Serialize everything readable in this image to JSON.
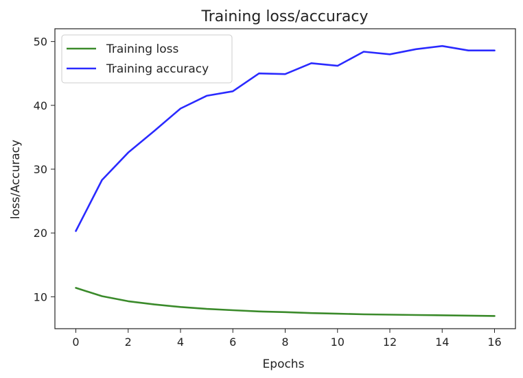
{
  "chart_data": {
    "type": "line",
    "title": "Training loss/accuracy",
    "xlabel": "Epochs",
    "ylabel": "loss/Accuracy",
    "xlim": [
      -0.8,
      16.8
    ],
    "ylim": [
      5,
      52
    ],
    "x_ticks": [
      0,
      2,
      4,
      6,
      8,
      10,
      12,
      14,
      16
    ],
    "y_ticks": [
      10,
      20,
      30,
      40,
      50
    ],
    "grid": false,
    "legend": "top-left",
    "x": [
      0,
      1,
      2,
      3,
      4,
      5,
      6,
      7,
      8,
      9,
      10,
      11,
      12,
      13,
      14,
      15,
      16
    ],
    "series": [
      {
        "name": "Training loss",
        "color": "#3a8a2a",
        "values": [
          11.4,
          10.1,
          9.3,
          8.8,
          8.4,
          8.1,
          7.9,
          7.7,
          7.6,
          7.45,
          7.35,
          7.25,
          7.2,
          7.15,
          7.1,
          7.05,
          7.0
        ]
      },
      {
        "name": "Training accuracy",
        "color": "#2a2aff",
        "values": [
          20.3,
          28.3,
          32.6,
          36.0,
          39.5,
          41.5,
          42.2,
          45.0,
          44.9,
          46.6,
          46.2,
          48.4,
          48.0,
          48.8,
          49.3,
          48.6,
          48.6
        ]
      }
    ]
  }
}
